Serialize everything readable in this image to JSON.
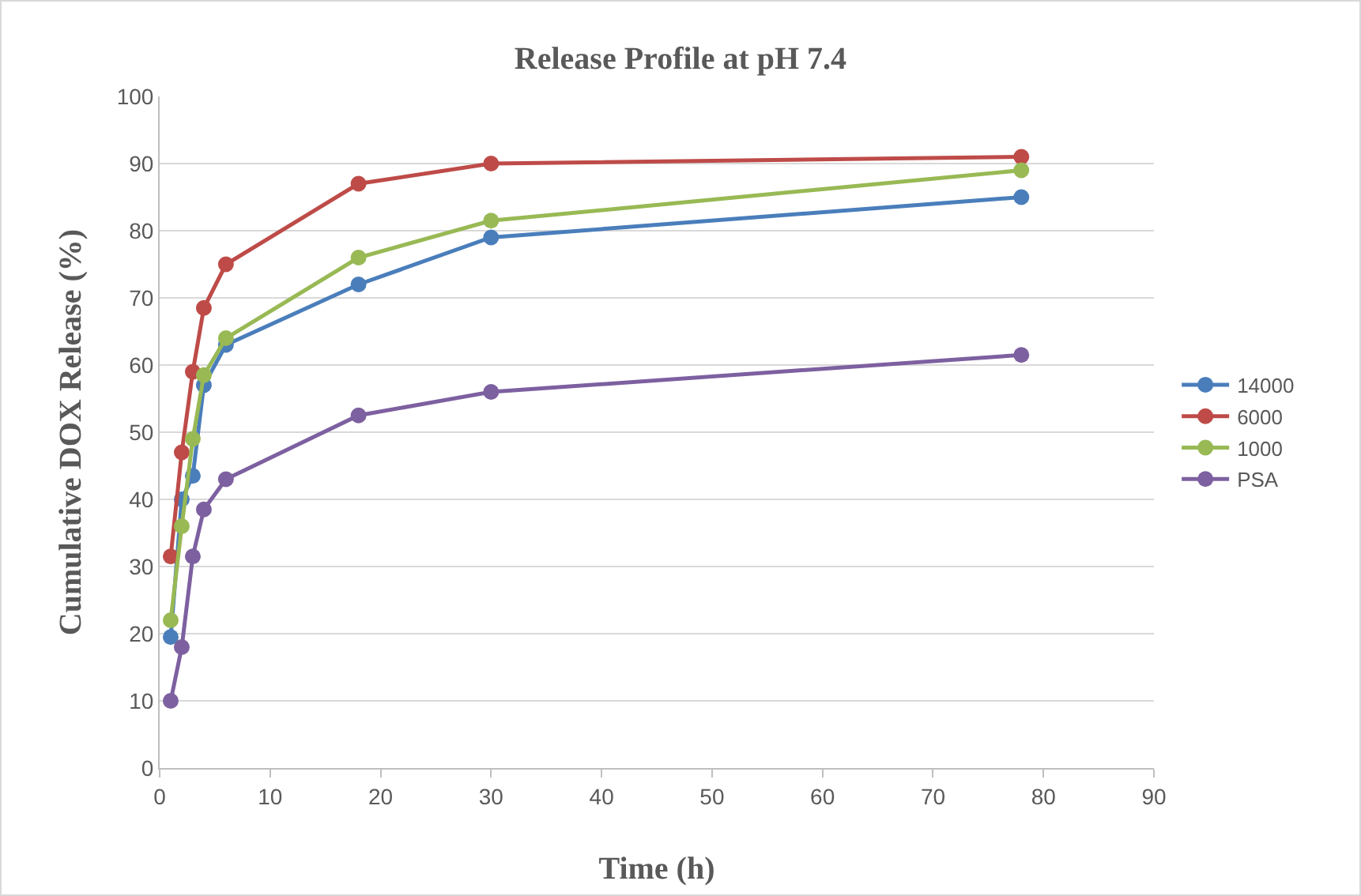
{
  "chart_data": {
    "type": "line",
    "title": "Release Profile at pH 7.4",
    "xlabel": "Time (h)",
    "ylabel": "Cumulative DOX Release (%)",
    "x": [
      1,
      2,
      3,
      4,
      6,
      18,
      30,
      78
    ],
    "series": [
      {
        "name": "14000",
        "color": "#4a7ebb",
        "values": [
          19.5,
          40,
          43.5,
          57,
          63,
          72,
          79,
          85
        ]
      },
      {
        "name": "6000",
        "color": "#be4b48",
        "values": [
          31.5,
          47,
          59,
          68.5,
          75,
          87,
          90,
          91
        ]
      },
      {
        "name": "1000",
        "color": "#98b954",
        "values": [
          22,
          36,
          49,
          58.5,
          64,
          76,
          81.5,
          89
        ]
      },
      {
        "name": "PSA",
        "color": "#7d60a0",
        "values": [
          10,
          18,
          31.5,
          38.5,
          43,
          52.5,
          56,
          61.5
        ]
      }
    ],
    "xlim": [
      0,
      90
    ],
    "xticks": [
      0,
      10,
      20,
      30,
      40,
      50,
      60,
      70,
      80,
      90
    ],
    "ylim": [
      0,
      100
    ],
    "yticks": [
      0,
      10,
      20,
      30,
      40,
      50,
      60,
      70,
      80,
      90,
      100
    ],
    "grid": "y",
    "legend": "right",
    "marker": "circle",
    "line_style": "solid"
  }
}
